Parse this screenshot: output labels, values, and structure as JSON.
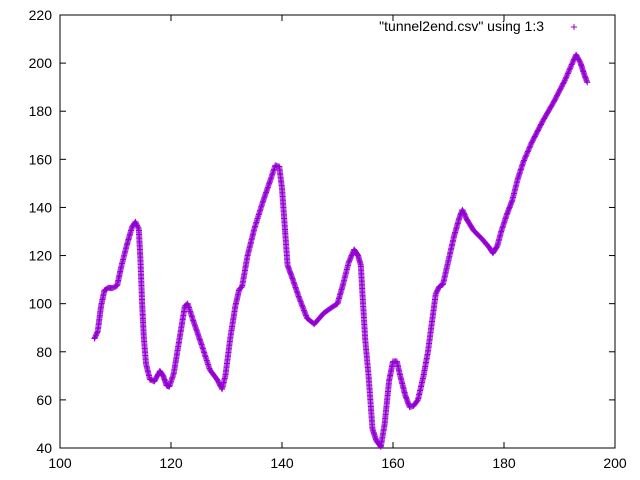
{
  "chart_data": {
    "type": "scatter",
    "title": "",
    "xlabel": "",
    "ylabel": "",
    "xlim": [
      100,
      200
    ],
    "ylim": [
      40,
      220
    ],
    "x_ticks": [
      "100",
      "120",
      "140",
      "160",
      "180",
      "200"
    ],
    "y_ticks": [
      "40",
      "60",
      "80",
      "100",
      "120",
      "140",
      "160",
      "180",
      "200",
      "220"
    ],
    "grid": false,
    "legend_position": "top-right",
    "marker": "plus",
    "series": [
      {
        "name": "\"tunnel2end.csv\" using 1:3",
        "color": "#9400d3",
        "points": [
          [
            106.2,
            85.5
          ],
          [
            106.8,
            88.5
          ],
          [
            107.4,
            99
          ],
          [
            108,
            105.5
          ],
          [
            108.7,
            106.6
          ],
          [
            109.5,
            106.5
          ],
          [
            110.3,
            107.5
          ],
          [
            111,
            115
          ],
          [
            112,
            124
          ],
          [
            113,
            132
          ],
          [
            113.6,
            134
          ],
          [
            114.2,
            131
          ],
          [
            114.5,
            118
          ],
          [
            114.8,
            100
          ],
          [
            115.1,
            86
          ],
          [
            115.5,
            75
          ],
          [
            116.2,
            68.5
          ],
          [
            117,
            67.7
          ],
          [
            118,
            72
          ],
          [
            118.6,
            70
          ],
          [
            119.2,
            66
          ],
          [
            119.7,
            65.5
          ],
          [
            120.5,
            71
          ],
          [
            121.5,
            85
          ],
          [
            122.5,
            99
          ],
          [
            123,
            100
          ],
          [
            124,
            93
          ],
          [
            125.5,
            83
          ],
          [
            127,
            72.5
          ],
          [
            128.3,
            68.5
          ],
          [
            129.2,
            64.5
          ],
          [
            129.8,
            70
          ],
          [
            130.7,
            86
          ],
          [
            131.6,
            99
          ],
          [
            132.3,
            106
          ],
          [
            132.8,
            107
          ],
          [
            133.8,
            120
          ],
          [
            135,
            131
          ],
          [
            136.5,
            142
          ],
          [
            138,
            152
          ],
          [
            138.8,
            157.5
          ],
          [
            139.5,
            157
          ],
          [
            140,
            148
          ],
          [
            140.5,
            132
          ],
          [
            141,
            116
          ],
          [
            141.8,
            111
          ],
          [
            143,
            103
          ],
          [
            144.5,
            94
          ],
          [
            145.8,
            91.5
          ],
          [
            147.5,
            96
          ],
          [
            149,
            98.5
          ],
          [
            150,
            100
          ],
          [
            151,
            108
          ],
          [
            152,
            117
          ],
          [
            153,
            122.5
          ],
          [
            153.7,
            120
          ],
          [
            154.2,
            116
          ],
          [
            154.6,
            100
          ],
          [
            155,
            85
          ],
          [
            155.6,
            70
          ],
          [
            156.3,
            48
          ],
          [
            157,
            43
          ],
          [
            157.8,
            40.5
          ],
          [
            158.5,
            50
          ],
          [
            159.3,
            68
          ],
          [
            160,
            76
          ],
          [
            160.7,
            76
          ],
          [
            161.3,
            70
          ],
          [
            162.2,
            62
          ],
          [
            163,
            57
          ],
          [
            163.7,
            57.5
          ],
          [
            164.5,
            60
          ],
          [
            165.5,
            70
          ],
          [
            166.3,
            80
          ],
          [
            167,
            92
          ],
          [
            167.7,
            104
          ],
          [
            168.3,
            107
          ],
          [
            169,
            108
          ],
          [
            170,
            118
          ],
          [
            171,
            128
          ],
          [
            172,
            136
          ],
          [
            172.5,
            139
          ],
          [
            173.3,
            135
          ],
          [
            174.5,
            130.5
          ],
          [
            176,
            127
          ],
          [
            177.3,
            123.5
          ],
          [
            178,
            121
          ],
          [
            178.8,
            124
          ],
          [
            179.5,
            130
          ],
          [
            180.5,
            137
          ],
          [
            181.5,
            143
          ],
          [
            182.5,
            152
          ],
          [
            183.5,
            159
          ],
          [
            185,
            167
          ],
          [
            187,
            176
          ],
          [
            189,
            184
          ],
          [
            191,
            193
          ],
          [
            192.5,
            201
          ],
          [
            193,
            203.5
          ],
          [
            193.8,
            200
          ],
          [
            194.5,
            195
          ],
          [
            195,
            192
          ]
        ]
      }
    ]
  }
}
